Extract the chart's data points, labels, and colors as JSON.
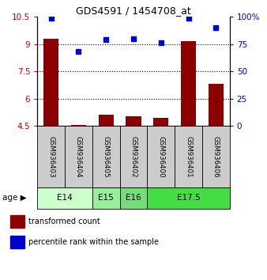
{
  "title": "GDS4591 / 1454708_at",
  "samples": [
    "GSM936403",
    "GSM936404",
    "GSM936405",
    "GSM936402",
    "GSM936400",
    "GSM936401",
    "GSM936406"
  ],
  "transformed_count": [
    9.3,
    4.57,
    5.1,
    5.05,
    4.95,
    9.15,
    6.8
  ],
  "percentile_rank": [
    99,
    68,
    79,
    80,
    76,
    99,
    90
  ],
  "bar_color": "#8B0000",
  "dot_color": "#0000CC",
  "ylim_left": [
    4.5,
    10.5
  ],
  "ylim_right": [
    0,
    100
  ],
  "yticks_left": [
    4.5,
    6.0,
    7.5,
    9.0,
    10.5
  ],
  "yticks_right": [
    0,
    25,
    50,
    75,
    100
  ],
  "ytick_labels_left": [
    "4.5",
    "6",
    "7.5",
    "9",
    "10.5"
  ],
  "ytick_labels_right": [
    "0",
    "25",
    "50",
    "75",
    "100%"
  ],
  "gridlines_at": [
    6.0,
    7.5,
    9.0
  ],
  "age_groups": [
    {
      "label": "E14",
      "spans": [
        0,
        1
      ],
      "color": "#ccffcc"
    },
    {
      "label": "E15",
      "spans": [
        2
      ],
      "color": "#99ee99"
    },
    {
      "label": "E16",
      "spans": [
        3
      ],
      "color": "#77dd77"
    },
    {
      "label": "E17.5",
      "spans": [
        4,
        5,
        6
      ],
      "color": "#44dd44"
    }
  ],
  "legend_items": [
    {
      "label": "transformed count",
      "color": "#8B0000"
    },
    {
      "label": "percentile rank within the sample",
      "color": "#0000CC"
    }
  ],
  "left_tick_color": "#CC0000",
  "right_tick_color": "#0000CC",
  "sample_box_color": "#cccccc",
  "bar_width": 0.55
}
